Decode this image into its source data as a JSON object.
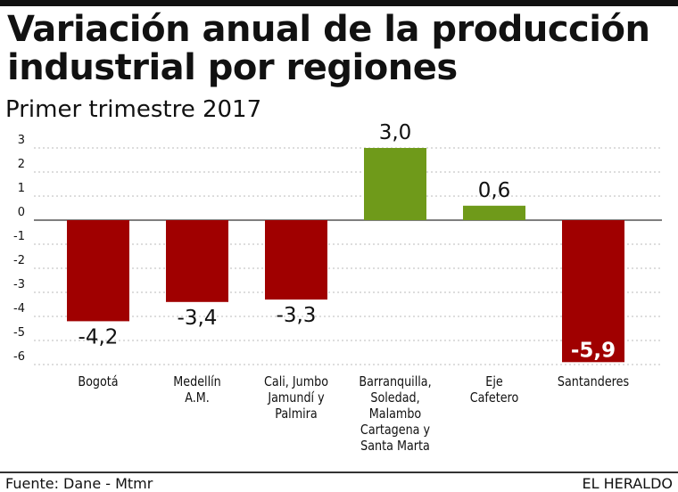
{
  "header": {
    "title": "Variación anual de la producción industrial por regiones",
    "subtitle": "Primer trimestre 2017"
  },
  "footer": {
    "source": "Fuente: Dane - Mtmr",
    "brand": "EL HERALDO"
  },
  "chart_data": {
    "type": "bar",
    "title": "Variación anual de la producción industrial por regiones",
    "subtitle": "Primer trimestre 2017",
    "categories": [
      "Bogotá",
      "Medellín A.M.",
      "Cali, Jumbo Jamundí y Palmira",
      "Barranquilla, Soledad, Malambo Cartagena y Santa Marta",
      "Eje Cafetero",
      "Santanderes"
    ],
    "category_lines": [
      [
        "Bogotá"
      ],
      [
        "Medellín",
        "A.M."
      ],
      [
        "Cali, Jumbo",
        "Jamundí y",
        "Palmira"
      ],
      [
        "Barranquilla,",
        "Soledad,",
        "Malambo",
        "Cartagena y",
        "Santa Marta"
      ],
      [
        "Eje",
        "Cafetero"
      ],
      [
        "Santanderes"
      ]
    ],
    "values": [
      -4.2,
      -3.4,
      -3.3,
      3.0,
      0.6,
      -5.9
    ],
    "data_labels": [
      "-4,2",
      "-3,4",
      "-3,3",
      "3,0",
      "0,6",
      "-5,9"
    ],
    "ylim": [
      -6,
      3
    ],
    "yticks": [
      3,
      2,
      1,
      0,
      -1,
      -2,
      -3,
      -4,
      -5,
      -6
    ],
    "grid": true,
    "colors": {
      "negative": "#a00000",
      "positive": "#6f9a1a"
    },
    "xlabel": "",
    "ylabel": ""
  }
}
